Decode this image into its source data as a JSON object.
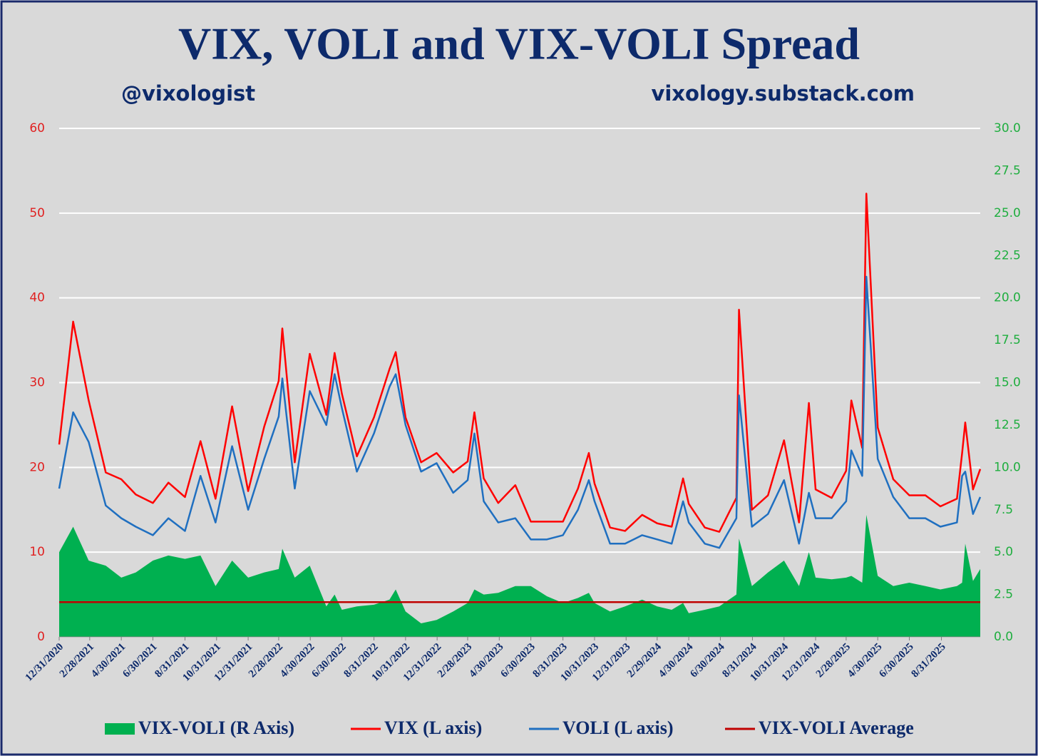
{
  "chart_data": {
    "type": "line",
    "title": "VIX, VOLI and VIX-VOLI Spread",
    "subtitle_left": "@vixologist",
    "subtitle_right": "vixology.substack.com",
    "x": [
      "12/31/2020",
      "1/27/2021",
      "2/26/2021",
      "3/31/2021",
      "4/30/2021",
      "5/28/2021",
      "6/30/2021",
      "7/30/2021",
      "8/31/2021",
      "9/30/2021",
      "10/29/2021",
      "11/30/2021",
      "12/31/2021",
      "1/31/2022",
      "2/28/2022",
      "3/7/2022",
      "3/31/2022",
      "4/29/2022",
      "5/31/2022",
      "6/16/2022",
      "6/30/2022",
      "7/29/2022",
      "8/31/2022",
      "9/30/2022",
      "10/12/2022",
      "10/31/2022",
      "11/30/2022",
      "12/30/2022",
      "1/31/2023",
      "2/28/2023",
      "3/13/2023",
      "3/31/2023",
      "4/28/2023",
      "5/31/2023",
      "6/30/2023",
      "7/31/2023",
      "8/31/2023",
      "9/29/2023",
      "10/20/2023",
      "10/31/2023",
      "11/30/2023",
      "12/29/2023",
      "1/31/2024",
      "2/29/2024",
      "3/28/2024",
      "4/19/2024",
      "4/30/2024",
      "5/31/2024",
      "6/28/2024",
      "7/31/2024",
      "8/5/2024",
      "8/30/2024",
      "9/30/2024",
      "10/31/2024",
      "11/29/2024",
      "12/18/2024",
      "12/31/2024",
      "1/31/2025",
      "2/28/2025",
      "3/10/2025",
      "3/31/2025",
      "4/8/2025",
      "4/30/2025",
      "5/30/2025",
      "6/30/2025",
      "7/31/2025",
      "8/29/2025",
      "9/30/2025",
      "10/10/2025",
      "10/16/2025",
      "10/31/2025",
      "11/14/2025"
    ],
    "series": [
      {
        "name": "VIX-VOLI (R Axis)",
        "color": "#00b050",
        "kind": "area",
        "axis": "y2",
        "values": [
          5.0,
          6.5,
          4.5,
          4.2,
          3.5,
          3.8,
          4.5,
          4.8,
          4.6,
          4.8,
          3.0,
          4.5,
          3.5,
          3.8,
          4.0,
          5.2,
          3.5,
          4.2,
          1.8,
          2.5,
          1.6,
          1.8,
          1.9,
          2.2,
          2.8,
          1.5,
          0.8,
          1.0,
          1.5,
          2.0,
          2.8,
          2.5,
          2.6,
          3.0,
          3.0,
          2.4,
          2.0,
          2.3,
          2.6,
          2.0,
          1.5,
          1.8,
          2.2,
          1.8,
          1.6,
          2.0,
          1.4,
          1.6,
          1.8,
          2.5,
          5.8,
          3.0,
          3.8,
          4.5,
          3.0,
          5.0,
          3.5,
          3.4,
          3.5,
          3.6,
          3.2,
          7.2,
          3.6,
          3.0,
          3.2,
          3.0,
          2.8,
          3.0,
          3.2,
          5.5,
          3.3,
          4.0
        ]
      },
      {
        "name": "VIX (L axis)",
        "color": "#ff0000",
        "kind": "line",
        "values": [
          22.7,
          37.2,
          27.9,
          19.4,
          18.6,
          16.8,
          15.8,
          18.2,
          16.5,
          23.1,
          16.3,
          27.2,
          17.2,
          24.8,
          30.2,
          36.4,
          20.6,
          33.4,
          26.2,
          33.5,
          28.7,
          21.3,
          25.9,
          31.6,
          33.6,
          25.9,
          20.6,
          21.7,
          19.4,
          20.7,
          26.5,
          18.7,
          15.8,
          17.9,
          13.6,
          13.6,
          13.6,
          17.5,
          21.7,
          18.1,
          12.9,
          12.5,
          14.4,
          13.4,
          13.0,
          18.7,
          15.7,
          12.9,
          12.4,
          16.4,
          38.6,
          15.0,
          16.7,
          23.2,
          13.5,
          27.6,
          17.4,
          16.4,
          19.6,
          27.9,
          22.3,
          52.3,
          24.7,
          18.6,
          16.7,
          16.7,
          15.4,
          16.3,
          21.7,
          25.3,
          17.4,
          19.8
        ]
      },
      {
        "name": "VOLI (L axis)",
        "color": "#1f6fc0",
        "kind": "line",
        "values": [
          17.5,
          26.5,
          23.0,
          15.5,
          14.0,
          13.0,
          12.0,
          14.0,
          12.5,
          19.0,
          13.5,
          22.5,
          15.0,
          21.0,
          26.0,
          30.5,
          17.5,
          29.0,
          25.0,
          31.0,
          27.0,
          19.5,
          24.0,
          29.5,
          31.0,
          25.0,
          19.5,
          20.5,
          17.0,
          18.5,
          24.0,
          16.0,
          13.5,
          14.0,
          11.5,
          11.5,
          12.0,
          15.0,
          18.5,
          16.0,
          11.0,
          11.0,
          12.0,
          11.5,
          11.0,
          16.0,
          13.5,
          11.0,
          10.5,
          14.0,
          28.5,
          13.0,
          14.5,
          18.5,
          11.0,
          17.0,
          14.0,
          14.0,
          16.0,
          22.0,
          19.0,
          42.5,
          21.0,
          16.5,
          14.0,
          14.0,
          13.0,
          13.5,
          19.0,
          19.5,
          14.5,
          16.5
        ]
      }
    ],
    "average": {
      "name": "VIX-VOLI Average",
      "color": "#c00000",
      "value": 2.05,
      "axis": "y2"
    },
    "xlim": [
      "12/31/2020",
      "11/14/2025"
    ],
    "xticks": [
      "12/31/2020",
      "2/28/2021",
      "4/30/2021",
      "6/30/2021",
      "8/31/2021",
      "10/31/2021",
      "12/31/2021",
      "2/28/2022",
      "4/30/2022",
      "6/30/2022",
      "8/31/2022",
      "10/31/2022",
      "12/31/2022",
      "2/28/2023",
      "4/30/2023",
      "6/30/2023",
      "8/31/2023",
      "10/31/2023",
      "12/31/2023",
      "2/29/2024",
      "4/30/2024",
      "6/30/2024",
      "8/31/2024",
      "10/31/2024",
      "12/31/2024",
      "2/28/2025",
      "4/30/2025",
      "6/30/2025",
      "8/31/2025"
    ],
    "ylim": [
      0,
      60
    ],
    "yticks": [
      0,
      10,
      20,
      30,
      40,
      50,
      60
    ],
    "y2lim": [
      0,
      30
    ],
    "y2ticks": [
      {
        "value": 0,
        "label": "0.0"
      },
      {
        "value": 2.5,
        "label": "2.5"
      },
      {
        "value": 5,
        "label": "5.0"
      },
      {
        "value": 7.5,
        "label": "7.5"
      },
      {
        "value": 10,
        "label": "10.0"
      },
      {
        "value": 12.5,
        "label": "12.5"
      },
      {
        "value": 15,
        "label": "15.0"
      },
      {
        "value": 17.5,
        "label": "17.5"
      },
      {
        "value": 20,
        "label": "20.0"
      },
      {
        "value": 22.5,
        "label": "22.5"
      },
      {
        "value": 25,
        "label": "25.0"
      },
      {
        "value": 27.5,
        "label": "27.5"
      },
      {
        "value": 30,
        "label": "30.0"
      }
    ],
    "grid": true,
    "legend": "bottom"
  }
}
